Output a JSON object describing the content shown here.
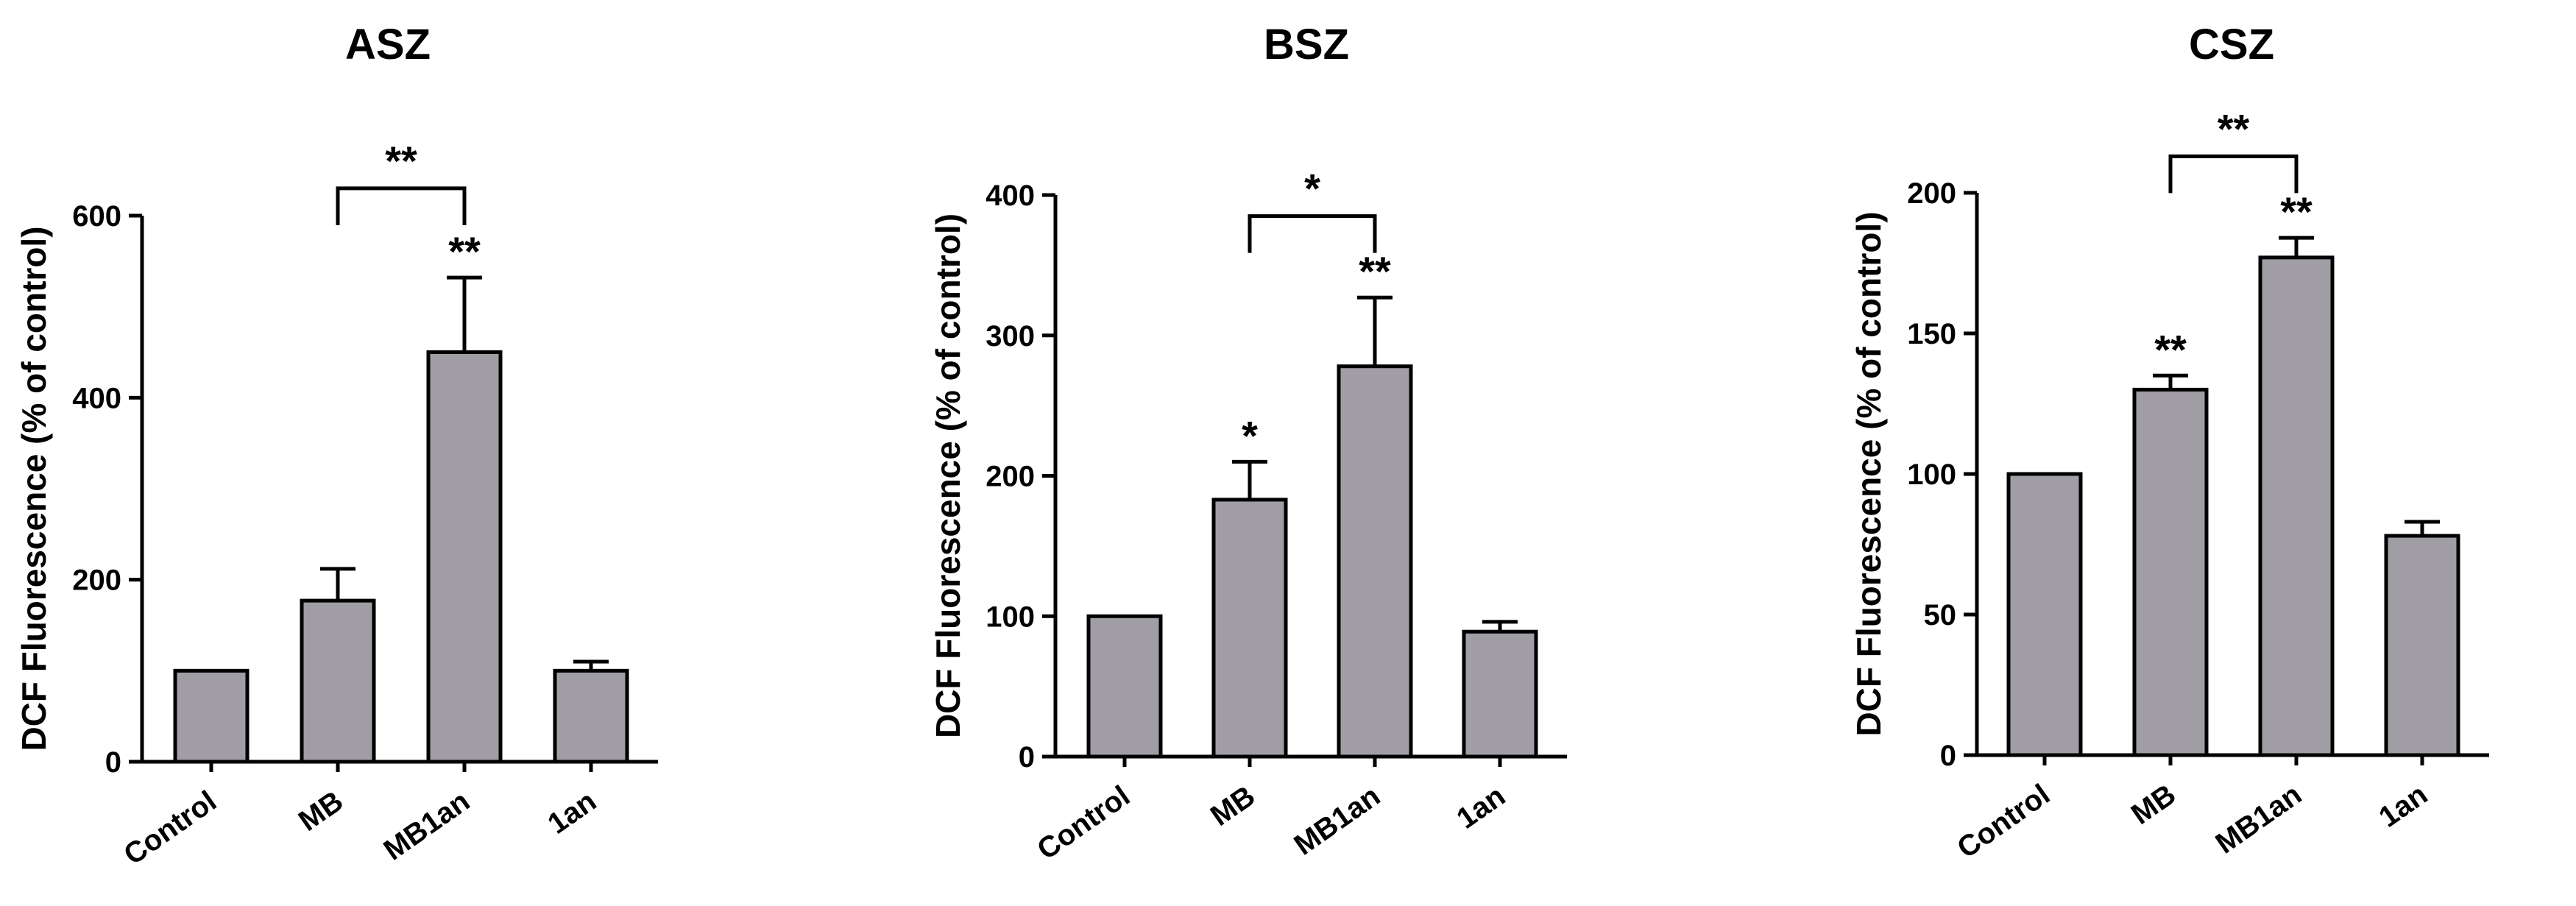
{
  "bar_color": "#a09ea4",
  "chart_data": [
    {
      "type": "bar",
      "title": "ASZ",
      "ylabel": "DCF Fluorescence (% of control)",
      "categories": [
        "Control",
        "MB",
        "MB1an",
        "1an"
      ],
      "values": [
        100,
        177,
        450,
        100
      ],
      "errors": [
        0,
        35,
        82,
        10
      ],
      "bar_annotations": [
        "",
        "",
        "**",
        ""
      ],
      "brackets": [
        {
          "from": 1,
          "to": 2,
          "label": "**",
          "y": 630
        }
      ],
      "ylim": [
        0,
        600
      ],
      "yticks": [
        0,
        200,
        400,
        600
      ]
    },
    {
      "type": "bar",
      "title": "BSZ",
      "ylabel": "DCF Fluorescence (% of control)",
      "categories": [
        "Control",
        "MB",
        "MB1an",
        "1an"
      ],
      "values": [
        100,
        183,
        278,
        89
      ],
      "errors": [
        0,
        27,
        49,
        7
      ],
      "bar_annotations": [
        "",
        "*",
        "**",
        ""
      ],
      "brackets": [
        {
          "from": 1,
          "to": 2,
          "label": "*",
          "y": 385
        }
      ],
      "ylim": [
        0,
        400
      ],
      "yticks": [
        0,
        100,
        200,
        300,
        400
      ]
    },
    {
      "type": "bar",
      "title": "CSZ",
      "ylabel": "DCF Fluorescence (% of control)",
      "categories": [
        "Control",
        "MB",
        "MB1an",
        "1an"
      ],
      "values": [
        100,
        130,
        177,
        78
      ],
      "errors": [
        0,
        5,
        7,
        5
      ],
      "bar_annotations": [
        "",
        "**",
        "**",
        ""
      ],
      "brackets": [
        {
          "from": 1,
          "to": 2,
          "label": "**",
          "y": 213
        }
      ],
      "ylim": [
        0,
        200
      ],
      "yticks": [
        0,
        50,
        100,
        150,
        200
      ]
    }
  ]
}
